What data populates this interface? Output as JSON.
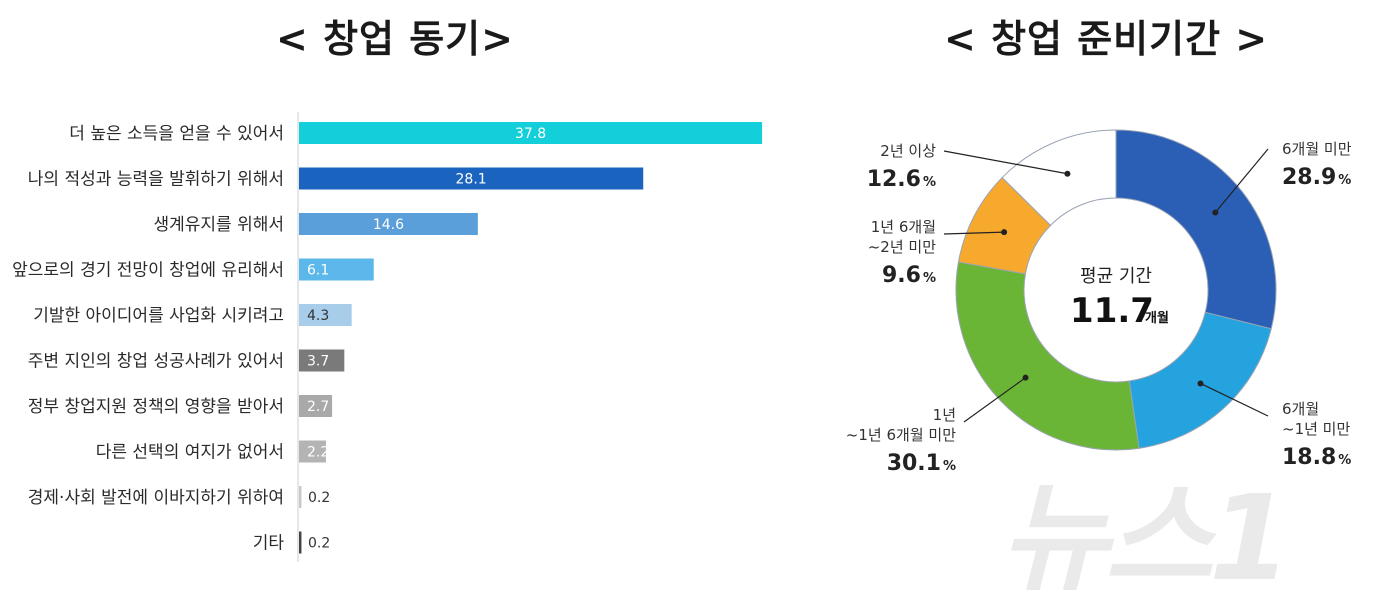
{
  "left_title": "< 창업  동기>",
  "right_title": "< 창업  준비기간 >",
  "watermark": "뉴스1",
  "chart_data": [
    {
      "type": "bar",
      "orientation": "horizontal",
      "categories": [
        "더 높은 소득을 얻을 수 있어서",
        "나의 적성과 능력을 발휘하기 위해서",
        "생계유지를 위해서",
        "앞으로의 경기 전망이 창업에 유리해서",
        "기발한 아이디어를 사업화 시키려고",
        "주변 지인의 창업 성공사례가 있어서",
        "정부 창업지원 정책의 영향을 받아서",
        "다른 선택의 여지가 없어서",
        "경제·사회 발전에 이바지하기 위하여",
        "기타"
      ],
      "values": [
        37.8,
        28.1,
        14.6,
        6.1,
        4.3,
        3.7,
        2.7,
        2.2,
        0.2,
        0.2
      ],
      "value_labels": [
        "37.8",
        "28.1",
        "14.6",
        "6.1",
        "4.3",
        "3.7",
        "2.7",
        "2.2",
        "0.2",
        "0.2"
      ],
      "colors": [
        "#12cfd9",
        "#1a64c0",
        "#5a9fd9",
        "#5cb7ea",
        "#a8cdea",
        "#7a7a7a",
        "#a9a9a9",
        "#b4b4b4",
        "#c8c8c8",
        "#444444"
      ],
      "xlim": [
        0,
        40
      ],
      "grid": false
    },
    {
      "type": "pie",
      "donut": true,
      "center_label": "평균 기간",
      "center_value": "11.7",
      "center_unit": "개월",
      "slices": [
        {
          "label": "6개월 미만",
          "value": 28.9,
          "color": "#2a5fb5"
        },
        {
          "label": "6개월 ~1년 미만",
          "value": 18.8,
          "color": "#25a3df"
        },
        {
          "label": "1년 ~1년 6개월 미만",
          "value": 30.1,
          "color": "#6bb536"
        },
        {
          "label": "1년 6개월 ~2년 미만",
          "value": 9.6,
          "color": "#f7a92e"
        },
        {
          "label": "2년 이상",
          "value": 12.6,
          "color": "#ffffff"
        }
      ],
      "callouts": [
        {
          "lines": [
            "6개월 미만"
          ],
          "pct": "28.9",
          "pct_sign": "%"
        },
        {
          "lines": [
            "6개월",
            "~1년 미만"
          ],
          "pct": "18.8",
          "pct_sign": "%"
        },
        {
          "lines": [
            "1년",
            "~1년 6개월 미만"
          ],
          "pct": "30.1",
          "pct_sign": "%"
        },
        {
          "lines": [
            "1년 6개월",
            "~2년 미만"
          ],
          "pct": "9.6",
          "pct_sign": "%"
        },
        {
          "lines": [
            "2년 이상"
          ],
          "pct": "12.6",
          "pct_sign": "%"
        }
      ]
    }
  ]
}
